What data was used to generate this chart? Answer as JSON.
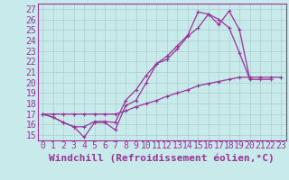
{
  "xlabel": "Windchill (Refroidissement éolien,°C)",
  "bg_color": "#c8eaea",
  "line_color": "#993399",
  "xlim": [
    -0.5,
    23.5
  ],
  "ylim": [
    14.5,
    27.5
  ],
  "xticks": [
    0,
    1,
    2,
    3,
    4,
    5,
    6,
    7,
    8,
    9,
    10,
    11,
    12,
    13,
    14,
    15,
    16,
    17,
    18,
    19,
    20,
    21,
    22,
    23
  ],
  "yticks": [
    15,
    16,
    17,
    18,
    19,
    20,
    21,
    22,
    23,
    24,
    25,
    26,
    27
  ],
  "line1_x": [
    0,
    1,
    2,
    3,
    4,
    5,
    6,
    7,
    8,
    9,
    10,
    11,
    12,
    13,
    14,
    15,
    16,
    17,
    18,
    19,
    20
  ],
  "line1_y": [
    17.0,
    16.7,
    16.2,
    15.8,
    14.8,
    16.2,
    16.2,
    15.5,
    17.8,
    18.3,
    20.0,
    21.8,
    22.2,
    23.2,
    24.4,
    25.2,
    26.5,
    25.5,
    26.8,
    25.0,
    20.3
  ],
  "line2_x": [
    0,
    1,
    2,
    3,
    4,
    5,
    6,
    7,
    8,
    9,
    10,
    11,
    12,
    13,
    14,
    15,
    16,
    17,
    18,
    19,
    20,
    21,
    22
  ],
  "line2_y": [
    17.0,
    16.7,
    16.2,
    15.8,
    15.8,
    16.3,
    16.3,
    16.2,
    18.3,
    19.3,
    20.7,
    21.8,
    22.5,
    23.5,
    24.5,
    26.7,
    26.5,
    26.0,
    25.2,
    22.8,
    20.3,
    20.3,
    20.3
  ],
  "line3_x": [
    0,
    1,
    2,
    3,
    4,
    5,
    6,
    7,
    8,
    9,
    10,
    11,
    12,
    13,
    14,
    15,
    16,
    17,
    18,
    19,
    20,
    21,
    22,
    23
  ],
  "line3_y": [
    17.0,
    17.0,
    17.0,
    17.0,
    17.0,
    17.0,
    17.0,
    17.0,
    17.3,
    17.7,
    18.0,
    18.3,
    18.7,
    19.0,
    19.3,
    19.7,
    19.9,
    20.1,
    20.3,
    20.5,
    20.5,
    20.5,
    20.5,
    20.5
  ],
  "grid_color": "#aacccc",
  "font_family": "monospace",
  "xlabel_fontsize": 8,
  "tick_fontsize": 7
}
